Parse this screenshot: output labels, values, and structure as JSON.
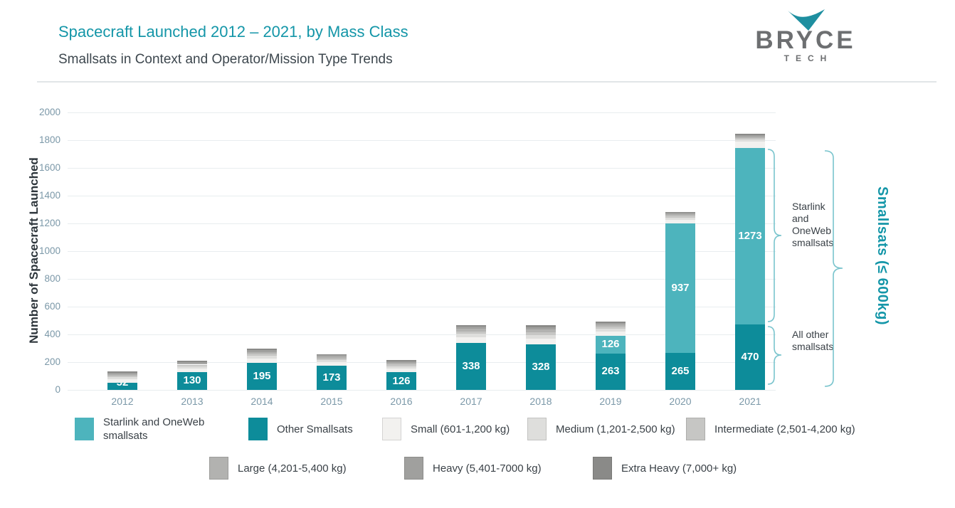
{
  "header": {
    "title": "Spacecraft Launched 2012 – 2021, by Mass Class",
    "subtitle": "Smallsats in Context and Operator/Mission Type Trends"
  },
  "logo": {
    "brand": "BRYCE",
    "sub": "TECH",
    "check_color": "#1e8fa0"
  },
  "y_axis": {
    "title": "Number of Spacecraft Launched",
    "ticks": [
      0,
      200,
      400,
      600,
      800,
      1000,
      1200,
      1400,
      1600,
      1800,
      2000
    ]
  },
  "annotations": {
    "starlink_label": "Starlink\nand\nOneWeb\nsmallsats",
    "all_other_label": "All other\nsmallsats",
    "bracket_label": "Smallsats (≤ 600kg)",
    "brace_color": "#79c4cd"
  },
  "legend": {
    "row1": [
      {
        "label": "Starlink and OneWeb smallsats",
        "color": "#4db4bd",
        "bordered": false
      },
      {
        "label": "Other Smallsats",
        "color": "#0d8c9a",
        "bordered": false
      },
      {
        "label": "Small (601-1,200 kg)",
        "color": "#f2f1ef",
        "bordered": true
      },
      {
        "label": "Medium (1,201-2,500 kg)",
        "color": "#dededc",
        "bordered": true
      },
      {
        "label": "Intermediate (2,501-4,200 kg)",
        "color": "#c6c6c4",
        "bordered": true
      }
    ],
    "row2": [
      {
        "label": "Large (4,201-5,400 kg)",
        "color": "#b2b2b0",
        "bordered": true
      },
      {
        "label": "Heavy (5,401-7000 kg)",
        "color": "#a0a09e",
        "bordered": true
      },
      {
        "label": "Extra Heavy (7,000+ kg)",
        "color": "#8a8a88",
        "bordered": true
      }
    ]
  },
  "chart_data": {
    "type": "bar",
    "stacked": true,
    "categories": [
      "2012",
      "2013",
      "2014",
      "2015",
      "2016",
      "2017",
      "2018",
      "2019",
      "2020",
      "2021"
    ],
    "ylim": [
      0,
      2000
    ],
    "ytick_step": 200,
    "grid": true,
    "series": [
      {
        "name": "Other Smallsats",
        "color": "#0d8c9a",
        "show_labels": true,
        "values": [
          52,
          130,
          195,
          173,
          126,
          338,
          328,
          263,
          265,
          470
        ]
      },
      {
        "name": "Starlink and OneWeb smallsats",
        "color": "#4db4bd",
        "show_labels": true,
        "values": [
          0,
          0,
          0,
          0,
          0,
          0,
          0,
          126,
          937,
          1273
        ]
      },
      {
        "name": "Small (601-1,200 kg)",
        "color": "#f2f1ef",
        "show_labels": false,
        "values": [
          24,
          24,
          31,
          25,
          26,
          39,
          41,
          31,
          24,
          45
        ]
      },
      {
        "name": "Medium (1,201-2,500 kg)",
        "color": "#dededc",
        "show_labels": false,
        "values": [
          16,
          16,
          20,
          17,
          18,
          26,
          27,
          21,
          16,
          15
        ]
      },
      {
        "name": "Intermediate (2,501-4,200 kg)",
        "color": "#c6c6c4",
        "show_labels": false,
        "values": [
          12,
          12,
          15,
          13,
          13,
          20,
          21,
          15,
          12,
          12
        ]
      },
      {
        "name": "Large (4,201-5,400 kg)",
        "color": "#b2b2b0",
        "show_labels": false,
        "values": [
          11,
          10,
          13,
          11,
          12,
          17,
          18,
          14,
          11,
          11
        ]
      },
      {
        "name": "Heavy (5,401-7000 kg)",
        "color": "#a0a09e",
        "show_labels": false,
        "values": [
          10,
          10,
          12,
          10,
          11,
          16,
          16,
          12,
          10,
          12
        ]
      },
      {
        "name": "Extra Heavy (7,000+ kg)",
        "color": "#8a8a88",
        "show_labels": false,
        "values": [
          8,
          8,
          11,
          8,
          8,
          12,
          14,
          10,
          8,
          10
        ]
      }
    ],
    "bar_value_labels": {
      "Other Smallsats": [
        52,
        130,
        195,
        173,
        126,
        338,
        328,
        263,
        265,
        470
      ],
      "Starlink and OneWeb smallsats": [
        126,
        937,
        1273
      ]
    }
  }
}
